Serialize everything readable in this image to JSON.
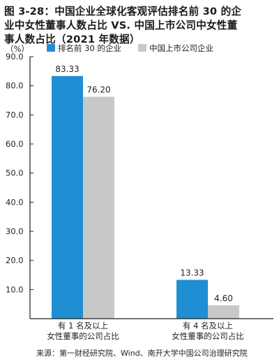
{
  "title_lines": [
    "图 3-28：中国企业全球化客观评估排名前 30 的企",
    "业中女性董事人数占比 VS. 中国上市公司中女性董",
    "事人数占比（2021 年数据）"
  ],
  "source": "来源：第一财经研究院、Wind、南开大学中国公司治理研究院",
  "chart_data": {
    "type": "bar",
    "unit_label": "（%）",
    "categories": [
      [
        "有 1 名及以上",
        "女性董事的公司占比"
      ],
      [
        "有 4 名及以上",
        "女性董事的公司占比"
      ]
    ],
    "series": [
      {
        "name": "排名前 30 的企业",
        "values": [
          83.33,
          13.33
        ],
        "labels": [
          "83.33",
          "13.33"
        ],
        "color": "#1f8ed3"
      },
      {
        "name": "中国上市公司企业",
        "values": [
          76.2,
          4.6
        ],
        "labels": [
          "76.20",
          "4.60"
        ],
        "color": "#c8c8c8"
      }
    ],
    "ylim": [
      0,
      90
    ],
    "yticks": [
      10,
      20,
      30,
      40,
      50,
      60,
      70,
      80,
      90
    ],
    "ytick_labels": [
      "10.0",
      "20.0",
      "30.0",
      "40.0",
      "50.0",
      "60.0",
      "70.0",
      "80.0",
      "90.0"
    ],
    "legend_position": "top",
    "grid": false
  }
}
